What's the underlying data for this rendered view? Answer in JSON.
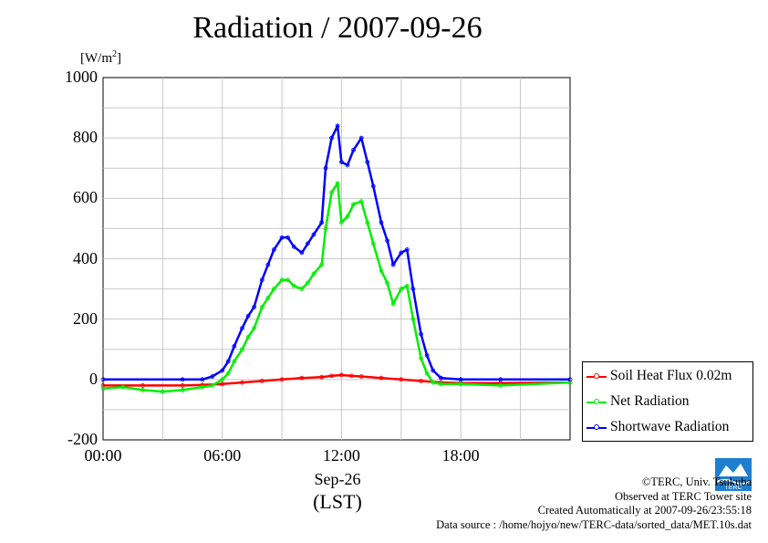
{
  "title": "Radiation / 2007-09-26",
  "unit_label": "[W/m",
  "unit_sup": "2",
  "unit_close": "]",
  "y_ticks": [
    "1000",
    "800",
    "600",
    "400",
    "200",
    "0",
    "-200"
  ],
  "x_ticks": [
    "00:00",
    "06:00",
    "12:00",
    "18:00"
  ],
  "x_date_label": "Sep-26",
  "x_axis_label": "(LST)",
  "legend": [
    {
      "label": "Soil Heat Flux 0.02m",
      "color": "#ff0000"
    },
    {
      "label": "Net Radiation",
      "color": "#00ee00"
    },
    {
      "label": "Shortwave Radiation",
      "color": "#0000ff"
    }
  ],
  "credits": {
    "line1": "©TERC, Univ. Tsukuba",
    "line2": "Observed at TERC Tower site",
    "line3": "Created Automatically at 2007-09-26/23:55:18",
    "line4": "Data source : /home/hojyo/new/TERC-data/sorted_data/MET.10s.dat"
  },
  "logo_text": "TERC",
  "chart_data": {
    "type": "line",
    "title": "Radiation / 2007-09-26",
    "xlabel": "(LST)",
    "ylabel": "[W/m2]",
    "xlim": [
      0,
      23.5
    ],
    "ylim": [
      -200,
      1000
    ],
    "x_unit": "hour (LST)",
    "grid": true,
    "legend_position": "bottom-right, outside plot",
    "series": [
      {
        "name": "Shortwave Radiation",
        "color": "#0000ff",
        "x": [
          0,
          4,
          5,
          5.5,
          6,
          6.3,
          6.6,
          7,
          7.3,
          7.6,
          8,
          8.3,
          8.6,
          9,
          9.3,
          9.6,
          10,
          10.3,
          10.6,
          11,
          11.2,
          11.5,
          11.8,
          12,
          12.3,
          12.6,
          13,
          13.3,
          13.6,
          14,
          14.3,
          14.6,
          15,
          15.3,
          15.6,
          16,
          16.3,
          16.6,
          17,
          18,
          20,
          23.5
        ],
        "y": [
          0,
          0,
          0,
          10,
          30,
          60,
          110,
          170,
          210,
          240,
          330,
          380,
          430,
          470,
          470,
          440,
          420,
          450,
          480,
          520,
          700,
          800,
          840,
          720,
          710,
          760,
          800,
          720,
          640,
          520,
          460,
          380,
          420,
          430,
          300,
          150,
          80,
          30,
          5,
          0,
          0,
          0
        ]
      },
      {
        "name": "Net Radiation",
        "color": "#00ee00",
        "x": [
          0,
          1,
          2,
          3,
          4,
          5,
          5.5,
          6,
          6.3,
          6.6,
          7,
          7.3,
          7.6,
          8,
          8.3,
          8.6,
          9,
          9.3,
          9.6,
          10,
          10.3,
          10.6,
          11,
          11.2,
          11.5,
          11.8,
          12,
          12.3,
          12.6,
          13,
          13.3,
          13.6,
          14,
          14.3,
          14.6,
          15,
          15.3,
          15.6,
          16,
          16.3,
          16.6,
          17,
          18,
          20,
          23.5
        ],
        "y": [
          -30,
          -25,
          -35,
          -40,
          -35,
          -25,
          -20,
          0,
          20,
          60,
          100,
          140,
          170,
          240,
          270,
          300,
          330,
          330,
          310,
          300,
          320,
          350,
          380,
          500,
          620,
          650,
          520,
          540,
          580,
          590,
          520,
          450,
          360,
          320,
          250,
          300,
          310,
          200,
          70,
          20,
          -10,
          -15,
          -15,
          -20,
          -10
        ]
      },
      {
        "name": "Soil Heat Flux 0.02m",
        "color": "#ff0000",
        "x": [
          0,
          2,
          4,
          5,
          6,
          7,
          8,
          9,
          10,
          11,
          11.5,
          12,
          12.5,
          13,
          14,
          15,
          16,
          17,
          18,
          20,
          23.5
        ],
        "y": [
          -20,
          -20,
          -20,
          -18,
          -15,
          -10,
          -5,
          0,
          5,
          8,
          12,
          15,
          12,
          10,
          5,
          0,
          -5,
          -10,
          -12,
          -12,
          -10
        ]
      }
    ]
  }
}
